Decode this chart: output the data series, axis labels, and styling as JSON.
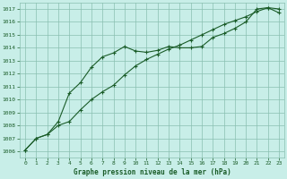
{
  "title": "Graphe pression niveau de la mer (hPa)",
  "bg_color": "#c8eee8",
  "grid_color": "#8abfb0",
  "line_color": "#1a5c28",
  "xlim": [
    -0.5,
    23.5
  ],
  "ylim": [
    1005.5,
    1017.5
  ],
  "yticks": [
    1006,
    1007,
    1008,
    1009,
    1010,
    1011,
    1012,
    1013,
    1014,
    1015,
    1016,
    1017
  ],
  "xticks": [
    0,
    1,
    2,
    3,
    4,
    5,
    6,
    7,
    8,
    9,
    10,
    11,
    12,
    13,
    14,
    15,
    16,
    17,
    18,
    19,
    20,
    21,
    22,
    23
  ],
  "series1_x": [
    0,
    1,
    2,
    3,
    4,
    5,
    6,
    7,
    8,
    9,
    10,
    11,
    12,
    13,
    14,
    15,
    16,
    17,
    18,
    19,
    20,
    21,
    22,
    23
  ],
  "series1_y": [
    1006.1,
    1007.0,
    1007.3,
    1008.3,
    1010.5,
    1011.3,
    1012.5,
    1013.3,
    1013.6,
    1014.1,
    1013.75,
    1013.65,
    1013.8,
    1014.1,
    1014.0,
    1014.0,
    1014.1,
    1014.8,
    1015.1,
    1015.5,
    1016.0,
    1017.0,
    1017.1,
    1017.0
  ],
  "series2_x": [
    0,
    1,
    2,
    3,
    4,
    5,
    6,
    7,
    8,
    9,
    10,
    11,
    12,
    13,
    14,
    15,
    16,
    17,
    18,
    19,
    20,
    21,
    22,
    23
  ],
  "series2_y": [
    1006.1,
    1007.0,
    1007.3,
    1008.0,
    1008.3,
    1009.2,
    1010.0,
    1010.6,
    1011.1,
    1011.9,
    1012.6,
    1013.1,
    1013.5,
    1013.9,
    1014.2,
    1014.6,
    1015.0,
    1015.4,
    1015.8,
    1016.1,
    1016.4,
    1016.8,
    1017.1,
    1016.7
  ]
}
